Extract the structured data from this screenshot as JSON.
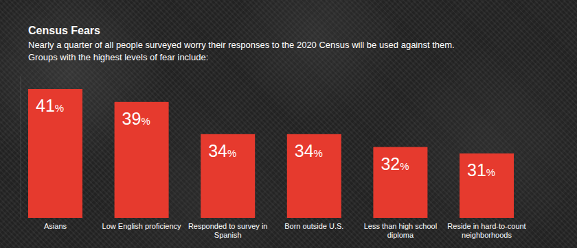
{
  "chart_data": {
    "type": "bar",
    "title": "Census Fears",
    "subtitle": "Nearly a quarter of all people surveyed worry their responses to the 2020 Census will be used against them.",
    "annotations": [
      "Groups with the highest levels of fear include:"
    ],
    "categories": [
      "Asians",
      "Low English proficiency",
      "Responded to survey in Spanish",
      "Born outside U.S.",
      "Less than high school diploma",
      "Reside in hard-to-count neighborhoods"
    ],
    "values": [
      41,
      39,
      34,
      34,
      32,
      31
    ],
    "value_labels": [
      "41%",
      "39%",
      "34%",
      "34%",
      "32%",
      "31%"
    ],
    "color": "#e63a2e",
    "ylim": [
      21,
      43
    ],
    "grid": false,
    "data_labels": true,
    "tick_labels": "x"
  }
}
